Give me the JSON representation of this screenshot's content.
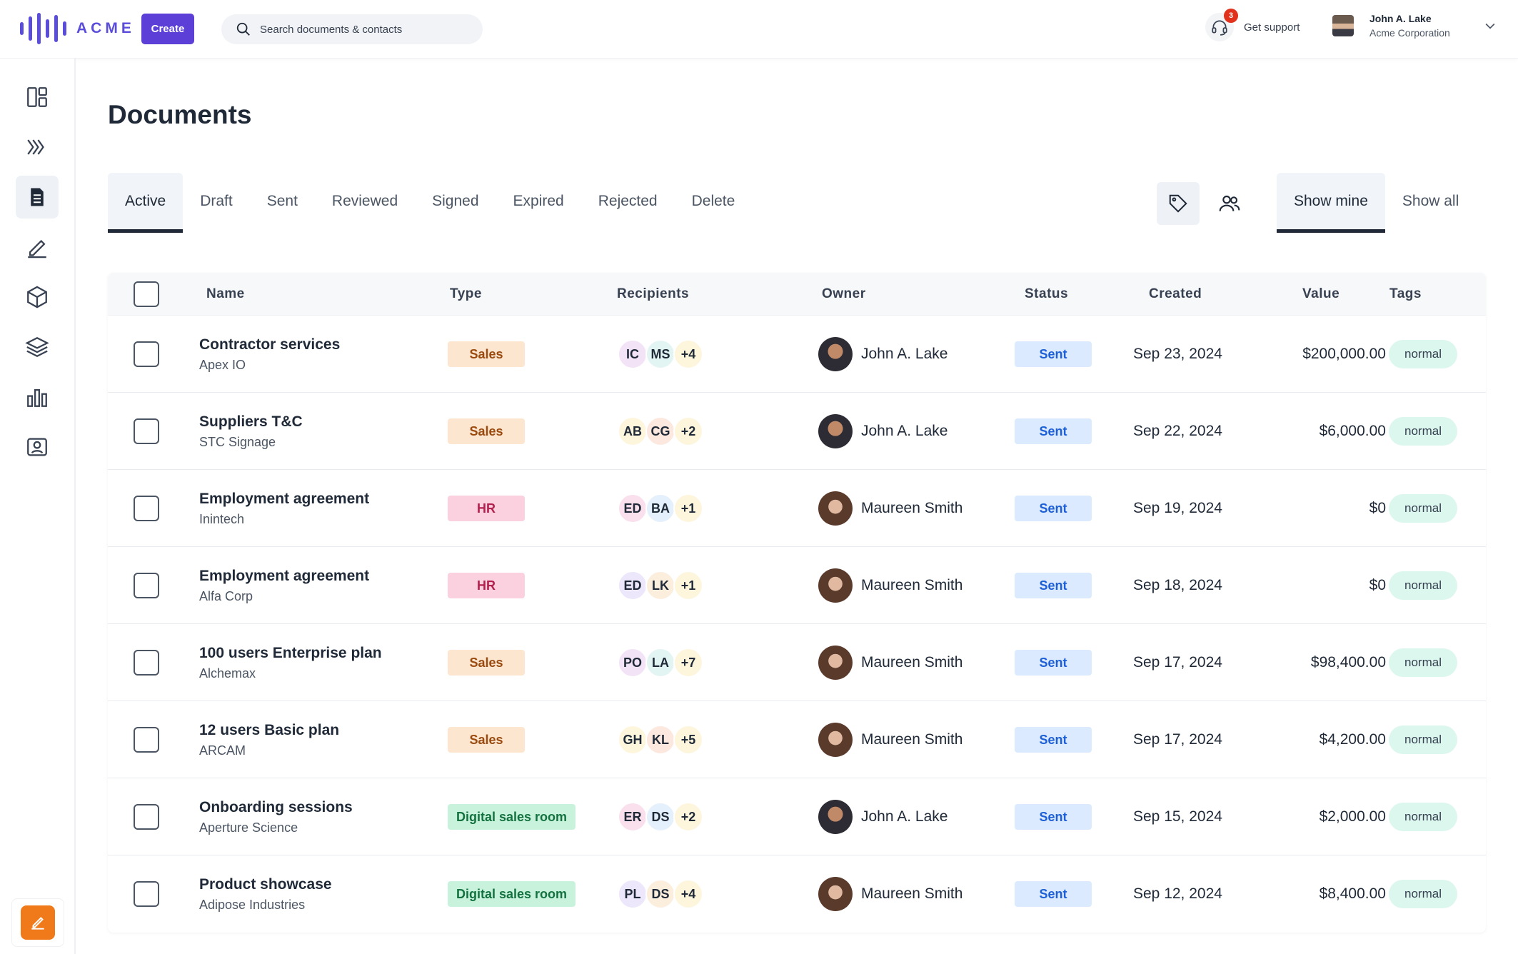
{
  "app": {
    "brand": "ACME",
    "brand_color": "#5b4ddb",
    "create_label": "Create",
    "search_placeholder": "Search documents & contacts"
  },
  "header": {
    "support_label": "Get support",
    "support_badge": "3",
    "user_name": "John A. Lake",
    "user_org": "Acme Corporation"
  },
  "sidebar": {
    "items": [
      {
        "icon": "dashboard-icon"
      },
      {
        "icon": "pipeline-icon"
      },
      {
        "icon": "document-icon",
        "active": true
      },
      {
        "icon": "pen-icon"
      },
      {
        "icon": "box-icon"
      },
      {
        "icon": "layers-icon"
      },
      {
        "icon": "bar-chart-icon"
      },
      {
        "icon": "contacts-icon"
      }
    ],
    "action_icon": "edit-icon"
  },
  "page": {
    "title": "Documents",
    "tabs": [
      "Active",
      "Draft",
      "Sent",
      "Reviewed",
      "Signed",
      "Expired",
      "Rejected",
      "Delete"
    ],
    "active_tab": "Active",
    "view_tabs": [
      "Show mine",
      "Show all"
    ],
    "active_view": "Show mine"
  },
  "table": {
    "columns": [
      "Name",
      "Type",
      "Recipients",
      "Owner",
      "Status",
      "Created",
      "Value",
      "Tags"
    ],
    "rows": [
      {
        "name": "Contractor services",
        "company": "Apex IO",
        "type": "Sales",
        "recipients": [
          "IC",
          "MS"
        ],
        "more": "+4",
        "owner": "John A. Lake",
        "status": "Sent",
        "created": "Sep 23, 2024",
        "value": "$200,000.00",
        "tag": "normal"
      },
      {
        "name": "Suppliers T&C",
        "company": "STC Signage",
        "type": "Sales",
        "recipients": [
          "AB",
          "CG"
        ],
        "more": "+2",
        "owner": "John A. Lake",
        "status": "Sent",
        "created": "Sep 22, 2024",
        "value": "$6,000.00",
        "tag": "normal"
      },
      {
        "name": "Employment agreement",
        "company": "Inintech",
        "type": "HR",
        "recipients": [
          "ED",
          "BA"
        ],
        "more": "+1",
        "owner": "Maureen Smith",
        "status": "Sent",
        "created": "Sep 19, 2024",
        "value": "$0",
        "tag": "normal"
      },
      {
        "name": "Employment agreement",
        "company": "Alfa Corp",
        "type": "HR",
        "recipients": [
          "ED",
          "LK"
        ],
        "more": "+1",
        "owner": "Maureen Smith",
        "status": "Sent",
        "created": "Sep 18, 2024",
        "value": "$0",
        "tag": "normal"
      },
      {
        "name": "100 users Enterprise plan",
        "company": "Alchemax",
        "type": "Sales",
        "recipients": [
          "PO",
          "LA"
        ],
        "more": "+7",
        "owner": "Maureen Smith",
        "status": "Sent",
        "created": "Sep 17, 2024",
        "value": "$98,400.00",
        "tag": "normal"
      },
      {
        "name": "12 users Basic plan",
        "company": "ARCAM",
        "type": "Sales",
        "recipients": [
          "GH",
          "KL"
        ],
        "more": "+5",
        "owner": "Maureen Smith",
        "status": "Sent",
        "created": "Sep 17, 2024",
        "value": "$4,200.00",
        "tag": "normal"
      },
      {
        "name": "Onboarding sessions",
        "company": "Aperture Science",
        "type": "Digital sales room",
        "recipients": [
          "ER",
          "DS"
        ],
        "more": "+2",
        "owner": "John A. Lake",
        "status": "Sent",
        "created": "Sep 15, 2024",
        "value": "$2,000.00",
        "tag": "normal"
      },
      {
        "name": "Product showcase",
        "company": "Adipose Industries",
        "type": "Digital sales room",
        "recipients": [
          "PL",
          "DS"
        ],
        "more": "+4",
        "owner": "Maureen Smith",
        "status": "Sent",
        "created": "Sep 12, 2024",
        "value": "$8,400.00",
        "tag": "normal"
      }
    ]
  },
  "colors": {
    "recipient_bg": [
      "#f3e3f7",
      "#e3f5f3",
      "#fdf6dd",
      "#fde8df",
      "#fae0ec",
      "#e4f0fb",
      "#ece7fb",
      "#fbeedd"
    ]
  }
}
